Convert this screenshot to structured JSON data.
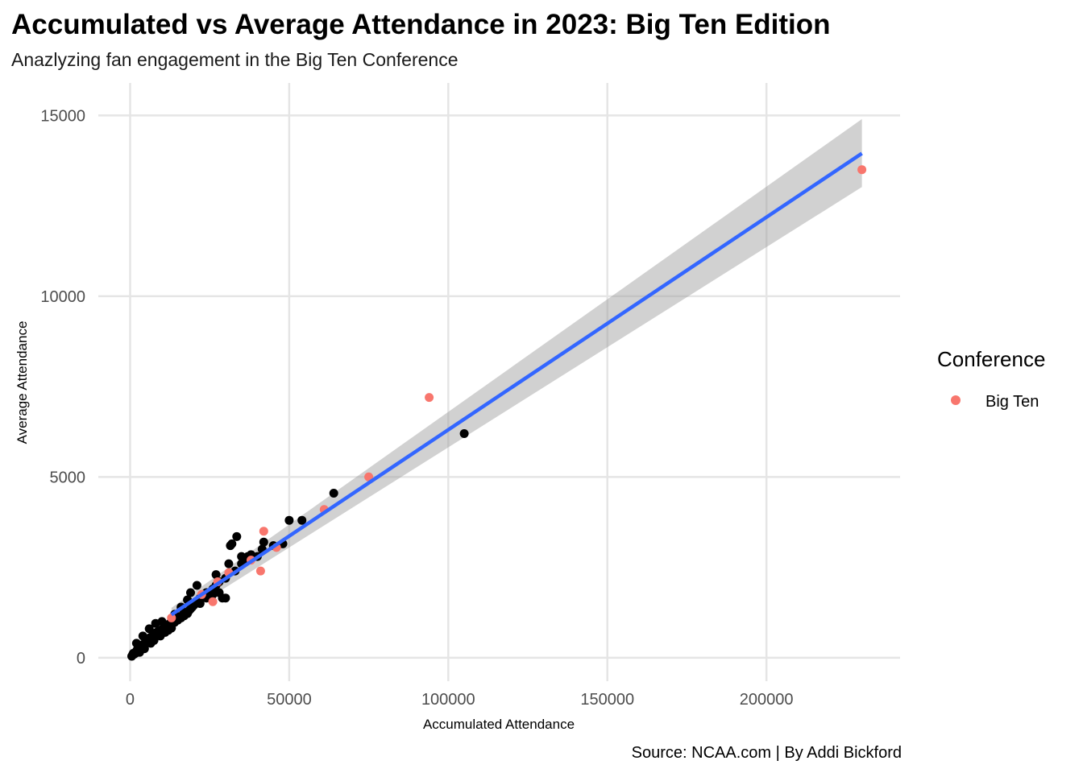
{
  "chart_data": {
    "type": "scatter",
    "title": "Accumulated vs Average Attendance in 2023: Big Ten Edition",
    "subtitle": "Anazlyzing fan engagement in the Big Ten Conference",
    "xlabel": "Accumulated Attendance",
    "ylabel": "Average Attendance",
    "caption": "Source: NCAA.com | By Addi Bickford",
    "x_ticks": [
      "0",
      "50000",
      "100000",
      "150000",
      "200000"
    ],
    "y_ticks": [
      "0",
      "5000",
      "10000",
      "15000"
    ],
    "xlim": [
      -10000,
      242000
    ],
    "ylim": [
      -650,
      15900
    ],
    "grid": true,
    "legend": {
      "title": "Conference",
      "placement": "right",
      "entries": [
        {
          "label": "Big Ten",
          "color": "#F8766D"
        }
      ]
    },
    "colors": {
      "other": "#000000",
      "big_ten": "#F8766D",
      "trend": "#3366FF",
      "band": "#999999"
    },
    "series": [
      {
        "name": "",
        "color": "#000000",
        "points": [
          [
            500,
            40
          ],
          [
            800,
            80
          ],
          [
            1000,
            120
          ],
          [
            1300,
            100
          ],
          [
            1600,
            150
          ],
          [
            1800,
            130
          ],
          [
            2000,
            180
          ],
          [
            2200,
            220
          ],
          [
            2500,
            200
          ],
          [
            2700,
            260
          ],
          [
            3000,
            240
          ],
          [
            3200,
            300
          ],
          [
            3500,
            280
          ],
          [
            3800,
            350
          ],
          [
            4000,
            320
          ],
          [
            4300,
            380
          ],
          [
            4600,
            360
          ],
          [
            5000,
            420
          ],
          [
            5200,
            480
          ],
          [
            5500,
            450
          ],
          [
            5800,
            520
          ],
          [
            6000,
            500
          ],
          [
            6300,
            560
          ],
          [
            6600,
            540
          ],
          [
            7000,
            600
          ],
          [
            7300,
            580
          ],
          [
            7600,
            650
          ],
          [
            8000,
            620
          ],
          [
            8300,
            700
          ],
          [
            8600,
            680
          ],
          [
            9000,
            740
          ],
          [
            9500,
            720
          ],
          [
            10000,
            780
          ],
          [
            10500,
            820
          ],
          [
            11000,
            800
          ],
          [
            11500,
            880
          ],
          [
            12000,
            860
          ],
          [
            12500,
            950
          ],
          [
            13000,
            920
          ],
          [
            13500,
            1000
          ],
          [
            14000,
            980
          ],
          [
            14500,
            1060
          ],
          [
            15000,
            1040
          ],
          [
            15500,
            1120
          ],
          [
            16000,
            1100
          ],
          [
            16500,
            1180
          ],
          [
            17000,
            1160
          ],
          [
            17500,
            1240
          ],
          [
            18000,
            1220
          ],
          [
            18500,
            1300
          ],
          [
            19000,
            1350
          ],
          [
            19500,
            1400
          ],
          [
            20000,
            1450
          ],
          [
            20500,
            1500
          ],
          [
            21000,
            1550
          ],
          [
            21500,
            1600
          ],
          [
            22000,
            1650
          ],
          [
            22500,
            1700
          ],
          [
            23000,
            1750
          ],
          [
            24000,
            1800
          ],
          [
            25000,
            1700
          ],
          [
            26000,
            1900
          ],
          [
            27000,
            2000
          ],
          [
            28000,
            2100
          ],
          [
            29000,
            1650
          ],
          [
            30000,
            2200
          ],
          [
            31000,
            2600
          ],
          [
            31500,
            3100
          ],
          [
            32000,
            3150
          ],
          [
            33000,
            2400
          ],
          [
            33500,
            3350
          ],
          [
            35000,
            2600
          ],
          [
            36000,
            2700
          ],
          [
            37000,
            2800
          ],
          [
            40000,
            2800
          ],
          [
            41500,
            3000
          ],
          [
            48000,
            3150
          ],
          [
            50000,
            3800
          ],
          [
            54000,
            3800
          ],
          [
            64000,
            4550
          ],
          [
            105000,
            6200
          ],
          [
            3000,
            150
          ],
          [
            4500,
            250
          ],
          [
            6500,
            400
          ],
          [
            7500,
            480
          ],
          [
            9500,
            600
          ],
          [
            11000,
            700
          ],
          [
            12000,
            760
          ],
          [
            13000,
            820
          ],
          [
            2000,
            400
          ],
          [
            4000,
            600
          ],
          [
            6000,
            800
          ],
          [
            8000,
            950
          ],
          [
            10000,
            1000
          ],
          [
            14000,
            1200
          ],
          [
            16000,
            1400
          ],
          [
            18000,
            1600
          ],
          [
            19000,
            1800
          ],
          [
            21000,
            2000
          ],
          [
            22000,
            1500
          ],
          [
            24000,
            1650
          ],
          [
            26000,
            1750
          ],
          [
            28000,
            1800
          ],
          [
            30000,
            1650
          ],
          [
            27000,
            2300
          ],
          [
            35000,
            2800
          ],
          [
            38000,
            2850
          ],
          [
            42000,
            3200
          ],
          [
            45000,
            3100
          ]
        ]
      },
      {
        "name": "Big Ten",
        "color": "#F8766D",
        "points": [
          [
            13000,
            1100
          ],
          [
            22500,
            1750
          ],
          [
            26000,
            1550
          ],
          [
            27500,
            2100
          ],
          [
            31000,
            2350
          ],
          [
            38000,
            2700
          ],
          [
            41000,
            2400
          ],
          [
            42000,
            3500
          ],
          [
            46000,
            3050
          ],
          [
            61000,
            4100
          ],
          [
            75000,
            5000
          ],
          [
            94000,
            7200
          ],
          [
            230000,
            13500
          ]
        ]
      }
    ],
    "trend": {
      "method": "linear",
      "x_range": [
        13000,
        230000
      ],
      "y_start": 1190,
      "y_end": 13950,
      "ci_start": [
        1000,
        1380
      ],
      "ci_end": [
        13020,
        14900
      ]
    }
  }
}
